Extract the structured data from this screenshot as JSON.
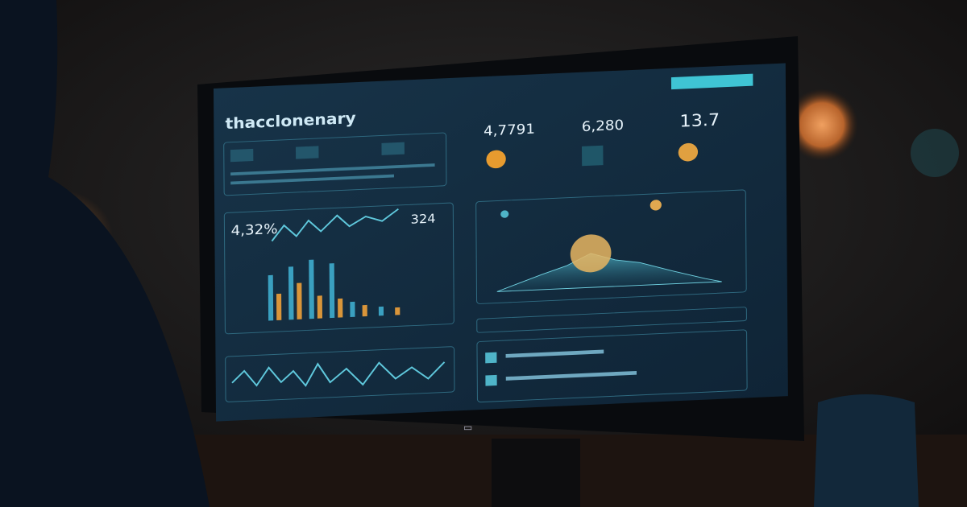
{
  "screen": {
    "title": "thacclonenary",
    "stats": [
      {
        "value": "4,7791"
      },
      {
        "value": "6,280"
      },
      {
        "value": "13.7"
      }
    ],
    "bar_panel": {
      "left_value": "4,32%",
      "right_value": "324"
    }
  }
}
